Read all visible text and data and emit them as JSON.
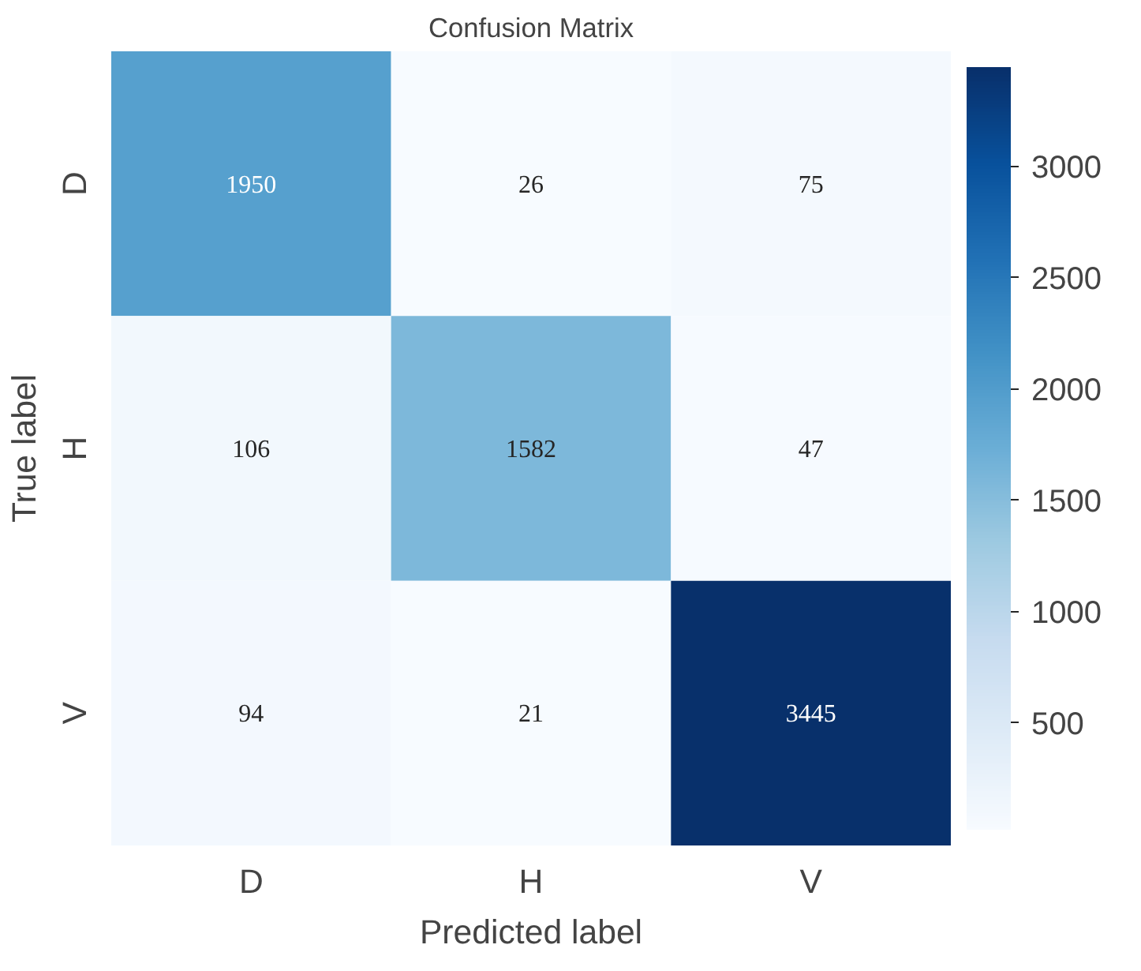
{
  "chart_data": {
    "type": "heatmap",
    "title": "Confusion Matrix",
    "xlabel": "Predicted label",
    "ylabel": "True label",
    "categories": [
      "D",
      "H",
      "V"
    ],
    "y_categories": [
      "D",
      "H",
      "V"
    ],
    "cells": [
      [
        1950,
        26,
        75
      ],
      [
        106,
        1582,
        47
      ],
      [
        94,
        21,
        3445
      ]
    ],
    "data_labels": true,
    "clim": [
      21,
      3445
    ],
    "cticks": [
      500,
      1000,
      1500,
      2000,
      2500,
      3000
    ],
    "grid": false
  }
}
